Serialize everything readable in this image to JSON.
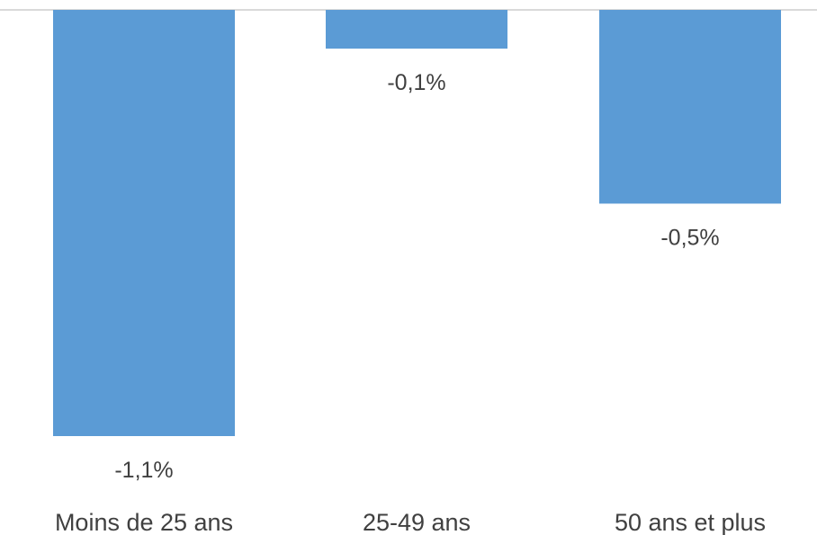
{
  "chart_data": {
    "type": "bar",
    "categories": [
      "Moins de 25 ans",
      "25-49 ans",
      "50 ans et plus"
    ],
    "values": [
      -1.1,
      -0.1,
      -0.5
    ],
    "data_labels": [
      "-1,1%",
      "-0,1%",
      "-0,5%"
    ],
    "ylim": [
      -1.1,
      0
    ],
    "grid": false,
    "legend": "none",
    "bar_color": "#5b9bd5",
    "text_color": "#404040",
    "axis_color": "#d9d9d9"
  }
}
